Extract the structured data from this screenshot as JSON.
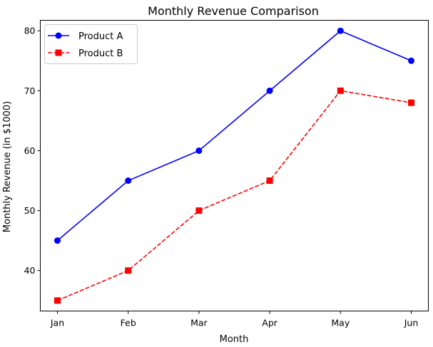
{
  "chart_data": {
    "type": "line",
    "title": "Monthly Revenue Comparison",
    "xlabel": "Month",
    "ylabel": "Monthly Revenue (in $1000)",
    "categories": [
      "Jan",
      "Feb",
      "Mar",
      "Apr",
      "May",
      "Jun"
    ],
    "ylim": [
      33.25,
      81.75
    ],
    "yticks": [
      40,
      50,
      60,
      70,
      80
    ],
    "grid": false,
    "legend_position": "upper-left",
    "series": [
      {
        "name": "Product A",
        "values": [
          45,
          55,
          60,
          70,
          80,
          75
        ],
        "color": "#0000ff",
        "line_style": "solid",
        "marker": "circle"
      },
      {
        "name": "Product B",
        "values": [
          35,
          40,
          50,
          55,
          70,
          68
        ],
        "color": "#ff0000",
        "line_style": "dashed",
        "marker": "square"
      }
    ]
  }
}
